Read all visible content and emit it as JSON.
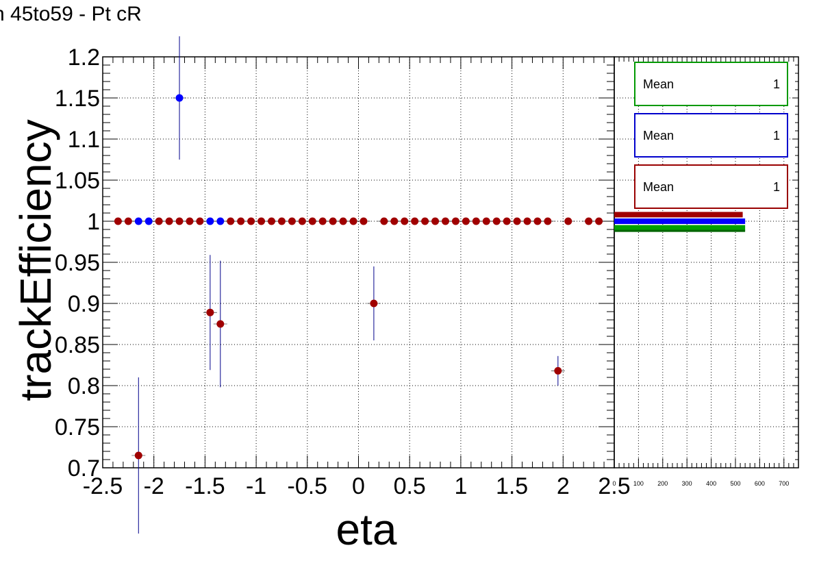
{
  "title": "n 45to59 - Pt cR",
  "colors": {
    "blue": "#0000ff",
    "red": "#a00000",
    "green": "#00a000",
    "dark_green": "#006400",
    "error_bar": "#00008b"
  },
  "stat_boxes": [
    {
      "label": "Mean",
      "value": "1",
      "color": "#009900"
    },
    {
      "label": "Mean",
      "value": "1",
      "color": "#0000cc"
    },
    {
      "label": "Mean",
      "value": "1",
      "color": "#990000"
    }
  ],
  "chart_data": [
    {
      "type": "scatter",
      "xlabel": "eta",
      "ylabel": "trackEfficiency",
      "xlim": [
        -2.5,
        2.5
      ],
      "ylim": [
        0.7,
        1.2
      ],
      "grid": true,
      "x_ticks": [
        "-2.5",
        "-2",
        "-1.5",
        "-1",
        "-0.5",
        "0",
        "0.5",
        "1",
        "1.5",
        "2",
        "2.5"
      ],
      "y_ticks": [
        "0.7",
        "0.75",
        "0.8",
        "0.85",
        "0.9",
        "0.95",
        "1",
        "1.05",
        "1.1",
        "1.15",
        "1.2"
      ],
      "series": [
        {
          "color": "#0000ff",
          "points": [
            {
              "x": -2.15,
              "y": 1.0
            },
            {
              "x": -2.05,
              "y": 1.0
            },
            {
              "x": -1.75,
              "y": 1.15,
              "err": 0.075
            },
            {
              "x": -1.45,
              "y": 1.0
            },
            {
              "x": -1.35,
              "y": 1.0
            }
          ]
        },
        {
          "color": "#a00000",
          "points": [
            {
              "x": -2.35,
              "y": 1.0
            },
            {
              "x": -2.25,
              "y": 1.0
            },
            {
              "x": -2.15,
              "y": 0.715,
              "err": 0.095
            },
            {
              "x": -1.95,
              "y": 1.0
            },
            {
              "x": -1.85,
              "y": 1.0
            },
            {
              "x": -1.75,
              "y": 1.0
            },
            {
              "x": -1.65,
              "y": 1.0
            },
            {
              "x": -1.55,
              "y": 1.0
            },
            {
              "x": -1.45,
              "y": 0.889,
              "err": 0.07
            },
            {
              "x": -1.35,
              "y": 0.875,
              "err": 0.077
            },
            {
              "x": -1.25,
              "y": 1.0
            },
            {
              "x": -1.15,
              "y": 1.0
            },
            {
              "x": -1.05,
              "y": 1.0
            },
            {
              "x": -0.95,
              "y": 1.0
            },
            {
              "x": -0.85,
              "y": 1.0
            },
            {
              "x": -0.75,
              "y": 1.0
            },
            {
              "x": -0.65,
              "y": 1.0
            },
            {
              "x": -0.55,
              "y": 1.0
            },
            {
              "x": -0.45,
              "y": 1.0
            },
            {
              "x": -0.35,
              "y": 1.0
            },
            {
              "x": -0.25,
              "y": 1.0
            },
            {
              "x": -0.15,
              "y": 1.0
            },
            {
              "x": -0.05,
              "y": 1.0
            },
            {
              "x": 0.05,
              "y": 1.0
            },
            {
              "x": 0.15,
              "y": 0.9,
              "err": 0.045
            },
            {
              "x": 0.25,
              "y": 1.0
            },
            {
              "x": 0.35,
              "y": 1.0
            },
            {
              "x": 0.45,
              "y": 1.0
            },
            {
              "x": 0.55,
              "y": 1.0
            },
            {
              "x": 0.65,
              "y": 1.0
            },
            {
              "x": 0.75,
              "y": 1.0
            },
            {
              "x": 0.85,
              "y": 1.0
            },
            {
              "x": 0.95,
              "y": 1.0
            },
            {
              "x": 1.05,
              "y": 1.0
            },
            {
              "x": 1.15,
              "y": 1.0
            },
            {
              "x": 1.25,
              "y": 1.0
            },
            {
              "x": 1.35,
              "y": 1.0
            },
            {
              "x": 1.45,
              "y": 1.0
            },
            {
              "x": 1.55,
              "y": 1.0
            },
            {
              "x": 1.65,
              "y": 1.0
            },
            {
              "x": 1.75,
              "y": 1.0
            },
            {
              "x": 1.85,
              "y": 1.0
            },
            {
              "x": 1.95,
              "y": 0.818,
              "err": 0.018
            },
            {
              "x": 2.05,
              "y": 1.0
            },
            {
              "x": 2.25,
              "y": 1.0
            },
            {
              "x": 2.35,
              "y": 1.0
            }
          ]
        }
      ]
    },
    {
      "type": "bar",
      "orientation": "horizontal",
      "x_ticks": [
        "0",
        "100",
        "200",
        "300",
        "400",
        "500",
        "600",
        "700"
      ],
      "xlim": [
        0,
        760
      ],
      "ylim": [
        0.7,
        1.2
      ],
      "grid": true,
      "bars": [
        {
          "y": 1.008,
          "value": 530,
          "color": "#a00000"
        },
        {
          "y": 1.0,
          "value": 540,
          "color": "#0000ff"
        },
        {
          "y": 0.992,
          "value": 540,
          "color": "#00a000"
        }
      ]
    }
  ]
}
